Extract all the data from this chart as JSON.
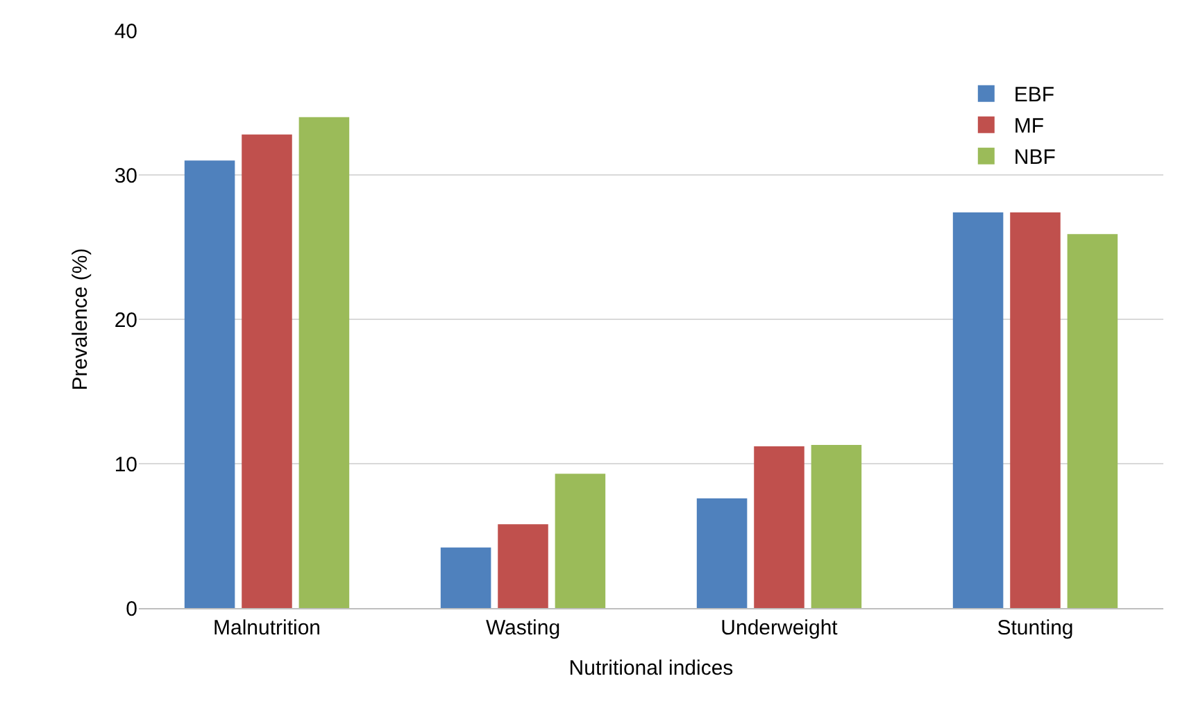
{
  "chart_data": {
    "type": "bar",
    "xlabel": "Nutritional indices",
    "ylabel": "Prevalence (%)",
    "categories": [
      "Malnutrition",
      "Wasting",
      "Underweight",
      "Stunting"
    ],
    "series": [
      {
        "name": "EBF",
        "color": "#4f81bd",
        "values": [
          31.0,
          4.2,
          7.6,
          27.4
        ]
      },
      {
        "name": "MF",
        "color": "#c0504d",
        "values": [
          32.8,
          5.8,
          11.2,
          27.4
        ]
      },
      {
        "name": "NBF",
        "color": "#9bbb59",
        "values": [
          34.0,
          9.3,
          11.3,
          25.9
        ]
      }
    ],
    "ylim": [
      0,
      40
    ],
    "yticks": [
      0,
      10,
      20,
      30,
      40
    ],
    "grid": "y",
    "legend": "top right"
  }
}
